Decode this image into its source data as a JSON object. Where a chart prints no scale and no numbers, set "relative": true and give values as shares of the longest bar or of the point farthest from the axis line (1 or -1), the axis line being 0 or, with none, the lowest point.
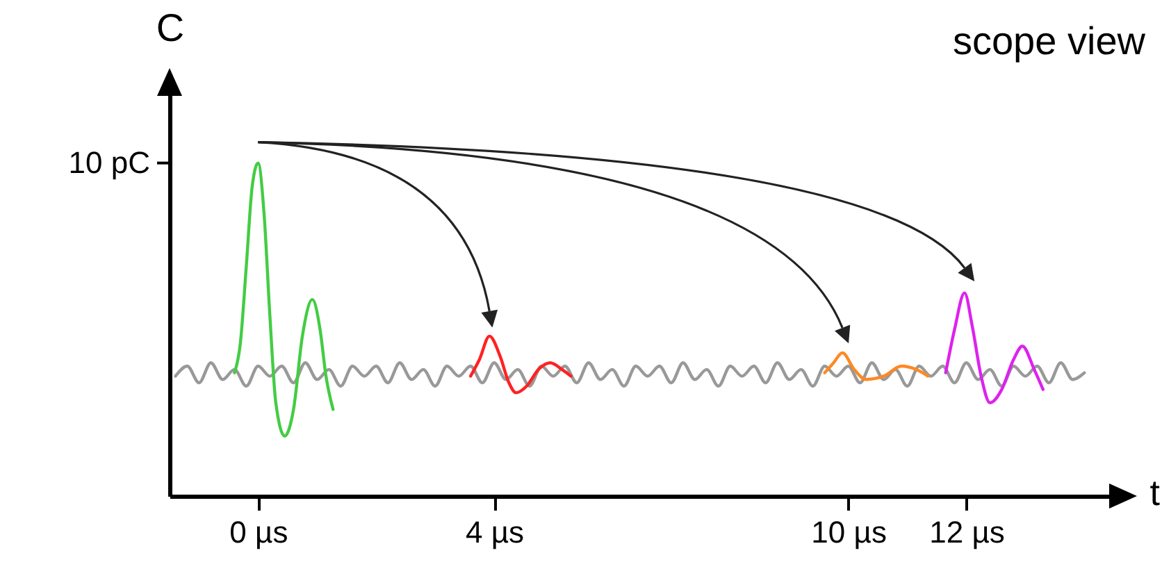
{
  "chart_data": {
    "type": "line",
    "title": "scope view",
    "xlabel": "t",
    "ylabel": "C",
    "relative": true,
    "xlim": [
      -1.5,
      14.75
    ],
    "xticks": [
      {
        "value": 0,
        "label": "0 µs"
      },
      {
        "value": 4,
        "label": "4 µs"
      },
      {
        "value": 10,
        "label": "10 µs"
      },
      {
        "value": 12,
        "label": "12 µs"
      }
    ],
    "annotations": [
      "10 pC"
    ],
    "series": [
      {
        "color": "#999999",
        "x": [
          -1.4,
          -1.2,
          -1.0,
          -0.8,
          -0.6,
          -0.4,
          -0.2,
          0,
          0.2,
          0.4,
          0.6,
          0.8,
          1.0,
          1.2,
          1.4,
          1.6,
          1.8,
          2.0,
          2.2,
          2.4,
          2.6,
          2.8,
          3.0,
          3.2,
          3.4,
          3.6,
          3.8,
          4.0,
          4.2,
          4.4,
          4.6,
          4.8,
          5.0,
          5.2,
          5.4,
          5.6,
          5.8,
          6.0,
          6.2,
          6.4,
          6.6,
          6.8,
          7.0,
          7.2,
          7.4,
          7.6,
          7.8,
          8.0,
          8.2,
          8.4,
          8.6,
          8.8,
          9.0,
          9.2,
          9.4,
          9.6,
          9.8,
          10.0,
          10.2,
          10.4,
          10.6,
          10.8,
          11.0,
          11.2,
          11.4,
          11.6,
          11.8,
          12.0,
          12.2,
          12.4,
          12.6,
          12.8,
          13.0,
          13.2,
          13.4,
          13.6,
          13.8,
          14.0
        ],
        "values": [
          0.36,
          0.39,
          0.34,
          0.4,
          0.35,
          0.38,
          0.33,
          0.39,
          0.36,
          0.39,
          0.34,
          0.4,
          0.35,
          0.38,
          0.33,
          0.39,
          0.36,
          0.39,
          0.34,
          0.4,
          0.35,
          0.38,
          0.33,
          0.39,
          0.36,
          0.39,
          0.34,
          0.4,
          0.35,
          0.38,
          0.33,
          0.39,
          0.36,
          0.39,
          0.34,
          0.4,
          0.35,
          0.38,
          0.33,
          0.39,
          0.36,
          0.39,
          0.34,
          0.4,
          0.35,
          0.38,
          0.33,
          0.39,
          0.36,
          0.39,
          0.34,
          0.4,
          0.35,
          0.38,
          0.33,
          0.39,
          0.36,
          0.39,
          0.34,
          0.4,
          0.35,
          0.38,
          0.33,
          0.39,
          0.36,
          0.39,
          0.34,
          0.4,
          0.35,
          0.38,
          0.33,
          0.39,
          0.36,
          0.39,
          0.34,
          0.4,
          0.35,
          0.37
        ]
      },
      {
        "color": "#44cc44",
        "x": [
          -0.4,
          -0.3,
          -0.2,
          -0.1,
          0,
          0.1,
          0.2,
          0.3,
          0.45,
          0.6,
          0.75,
          0.92,
          1.05,
          1.15,
          1.27
        ],
        "values": [
          0.37,
          0.46,
          0.69,
          0.93,
          1,
          0.85,
          0.54,
          0.28,
          0.18,
          0.26,
          0.48,
          0.59,
          0.5,
          0.36,
          0.26
        ]
      },
      {
        "color": "#ff2222",
        "x": [
          3.6,
          3.75,
          3.92,
          4.1,
          4.25,
          4.37,
          4.55,
          4.75,
          4.95,
          5.15,
          5.3
        ],
        "values": [
          0.36,
          0.41,
          0.48,
          0.42,
          0.34,
          0.31,
          0.33,
          0.38,
          0.4,
          0.38,
          0.36
        ]
      },
      {
        "color": "#ff8822",
        "x": [
          9.6,
          9.75,
          9.9,
          10.1,
          10.3,
          10.6,
          10.9,
          11.15,
          11.35
        ],
        "values": [
          0.37,
          0.4,
          0.43,
          0.38,
          0.35,
          0.36,
          0.39,
          0.38,
          0.36
        ]
      },
      {
        "color": "#dd22ee",
        "x": [
          11.65,
          11.8,
          11.97,
          12.1,
          12.25,
          12.4,
          12.6,
          12.8,
          12.95,
          13.15,
          13.3
        ],
        "values": [
          0.37,
          0.5,
          0.61,
          0.51,
          0.36,
          0.28,
          0.32,
          0.41,
          0.45,
          0.38,
          0.32
        ]
      }
    ]
  }
}
